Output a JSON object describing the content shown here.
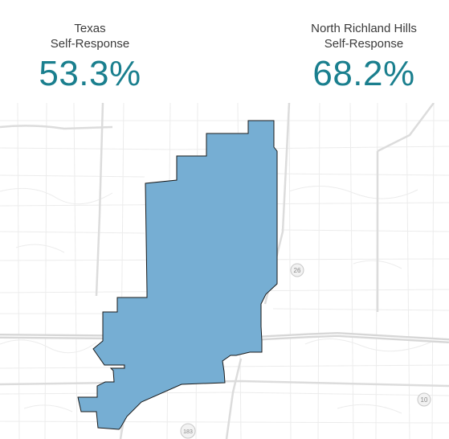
{
  "stats": {
    "texas": {
      "label_line1": "Texas",
      "label_line2": "Self-Response",
      "value": "53.3%"
    },
    "city": {
      "label_line1": "North Richland Hills",
      "label_line2": "Self-Response",
      "value": "68.2%"
    }
  },
  "map": {
    "highway_shields": [
      "26",
      "10",
      "183"
    ],
    "colors": {
      "region_fill": "#76aed3",
      "region_stroke": "#1a1a1a",
      "road_minor": "#e8e8e8",
      "road_major": "#dcdcdc",
      "shield_fill": "#f2f2f2"
    }
  }
}
